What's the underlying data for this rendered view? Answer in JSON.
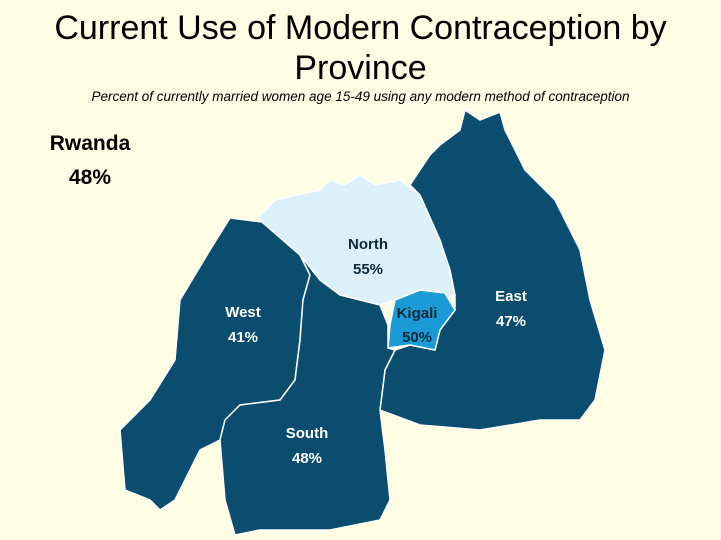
{
  "title": "Current Use of Modern Contraception by Province",
  "subtitle": "Percent of currently married women age 15-49 using any modern method of contraception",
  "national": {
    "name": "Rwanda",
    "value": "48%"
  },
  "regions": [
    {
      "name": "North",
      "value": "55%",
      "color": "#dcf0fa"
    },
    {
      "name": "East",
      "value": "47%",
      "color": "#0b4d6e"
    },
    {
      "name": "West",
      "value": "41%",
      "color": "#0b4d6e"
    },
    {
      "name": "South",
      "value": "48%",
      "color": "#0b4d6e"
    },
    {
      "name": "Kigali",
      "value": "50%",
      "color": "#1a9ad6"
    }
  ]
}
